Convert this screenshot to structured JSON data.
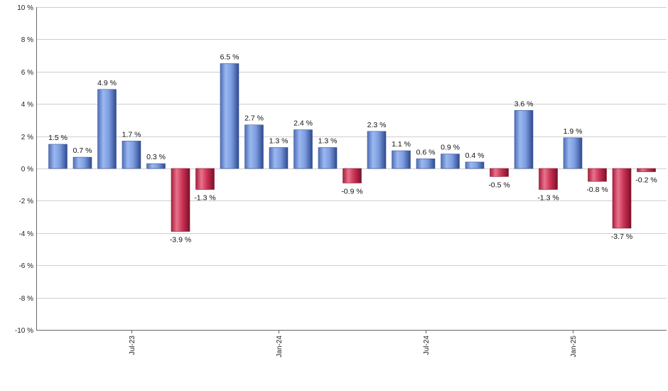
{
  "chart_data": {
    "type": "bar",
    "title": "",
    "xlabel": "",
    "ylabel": "",
    "ylim": [
      -10,
      10
    ],
    "y_ticks": [
      10,
      8,
      6,
      4,
      2,
      0,
      -2,
      -4,
      -6,
      -8,
      -10
    ],
    "y_tick_labels": [
      "10 %",
      "8 %",
      "6 %",
      "4 %",
      "2 %",
      "0 %",
      "-2 %",
      "-4 %",
      "-6 %",
      "-8 %",
      "-10 %"
    ],
    "x_tick_labels": [
      {
        "label": "Jul-23",
        "index": 3
      },
      {
        "label": "Jan-24",
        "index": 9
      },
      {
        "label": "Jul-24",
        "index": 15
      },
      {
        "label": "Jan-25",
        "index": 21
      }
    ],
    "values": [
      1.5,
      0.7,
      4.9,
      1.7,
      0.3,
      -3.9,
      -1.3,
      6.5,
      2.7,
      1.3,
      2.4,
      1.3,
      -0.9,
      2.3,
      1.1,
      0.6,
      0.9,
      0.4,
      -0.5,
      3.6,
      -1.3,
      1.9,
      -0.8,
      -3.7,
      -0.2
    ],
    "data_labels": [
      "1.5 %",
      "0.7 %",
      "4.9 %",
      "1.7 %",
      "0.3 %",
      "-3.9 %",
      "-1.3 %",
      "6.5 %",
      "2.7 %",
      "1.3 %",
      "2.4 %",
      "1.3 %",
      "-0.9 %",
      "2.3 %",
      "1.1 %",
      "0.6 %",
      "0.9 %",
      "0.4 %",
      "-0.5 %",
      "3.6 %",
      "-1.3 %",
      "1.9 %",
      "-0.8 %",
      "-3.7 %",
      "-0.2 %"
    ],
    "grid": true,
    "positive_color": "#6f95e0",
    "negative_color": "#cc3355"
  }
}
